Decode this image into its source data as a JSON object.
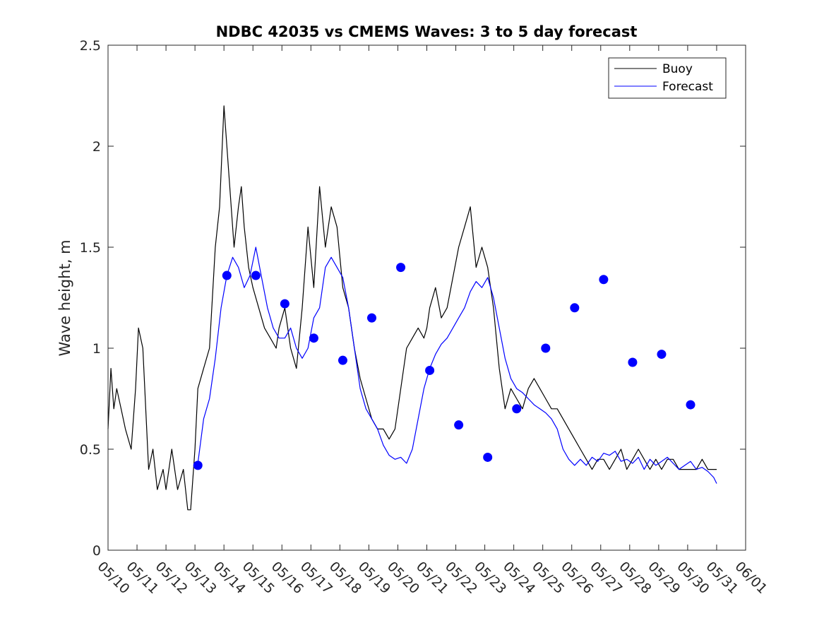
{
  "chart_data": {
    "type": "line",
    "title": "NDBC 42035 vs CMEMS Waves: 3 to 5 day forecast",
    "xlabel": "",
    "ylabel": "Wave height, m",
    "xlim": [
      "05/10",
      "06/01"
    ],
    "ylim": [
      0,
      2.5
    ],
    "yticks": [
      0,
      0.5,
      1,
      1.5,
      2,
      2.5
    ],
    "xticks": [
      "05/10",
      "05/11",
      "05/12",
      "05/13",
      "05/14",
      "05/15",
      "05/16",
      "05/17",
      "05/18",
      "05/19",
      "05/20",
      "05/21",
      "05/22",
      "05/23",
      "05/24",
      "05/25",
      "05/26",
      "05/27",
      "05/28",
      "05/29",
      "05/30",
      "05/31",
      "06/01"
    ],
    "grid": false,
    "legend_position": "top-right",
    "series": [
      {
        "name": "Buoy",
        "color": "#000000",
        "x": [
          0.0,
          0.1,
          0.2,
          0.3,
          0.45,
          0.6,
          0.8,
          0.95,
          1.05,
          1.2,
          1.3,
          1.4,
          1.55,
          1.7,
          1.9,
          2.0,
          2.2,
          2.4,
          2.6,
          2.75,
          2.85,
          3.0,
          3.1,
          3.3,
          3.5,
          3.7,
          3.85,
          4.0,
          4.2,
          4.35,
          4.5,
          4.6,
          4.7,
          4.85,
          5.0,
          5.2,
          5.4,
          5.6,
          5.8,
          5.9,
          6.1,
          6.3,
          6.5,
          6.7,
          6.9,
          7.1,
          7.3,
          7.5,
          7.7,
          7.9,
          8.1,
          8.3,
          8.5,
          8.7,
          8.9,
          9.1,
          9.3,
          9.5,
          9.7,
          9.9,
          10.1,
          10.3,
          10.5,
          10.7,
          10.9,
          11.0,
          11.1,
          11.3,
          11.5,
          11.7,
          11.9,
          12.1,
          12.3,
          12.5,
          12.7,
          12.9,
          13.1,
          13.3,
          13.5,
          13.7,
          13.9,
          14.1,
          14.3,
          14.5,
          14.7,
          14.9,
          15.1,
          15.3,
          15.5,
          15.7,
          15.9,
          16.1,
          16.3,
          16.5,
          16.7,
          16.9,
          17.1,
          17.3,
          17.5,
          17.7,
          17.9,
          18.1,
          18.3,
          18.5,
          18.7,
          18.9,
          19.1,
          19.3,
          19.5,
          19.7,
          19.9,
          20.1,
          20.3,
          20.5,
          20.7,
          20.9,
          21.0
        ],
        "values": [
          0.6,
          0.9,
          0.7,
          0.8,
          0.7,
          0.6,
          0.5,
          0.8,
          1.1,
          1.0,
          0.7,
          0.4,
          0.5,
          0.3,
          0.4,
          0.3,
          0.5,
          0.3,
          0.4,
          0.2,
          0.2,
          0.5,
          0.8,
          0.9,
          1.0,
          1.5,
          1.7,
          2.2,
          1.8,
          1.5,
          1.7,
          1.8,
          1.6,
          1.4,
          1.3,
          1.2,
          1.1,
          1.05,
          1.0,
          1.1,
          1.2,
          1.0,
          0.9,
          1.2,
          1.6,
          1.3,
          1.8,
          1.5,
          1.7,
          1.6,
          1.3,
          1.2,
          1.0,
          0.85,
          0.75,
          0.65,
          0.6,
          0.6,
          0.55,
          0.6,
          0.8,
          1.0,
          1.05,
          1.1,
          1.05,
          1.1,
          1.2,
          1.3,
          1.15,
          1.2,
          1.35,
          1.5,
          1.6,
          1.7,
          1.4,
          1.5,
          1.4,
          1.2,
          0.9,
          0.7,
          0.8,
          0.75,
          0.7,
          0.8,
          0.85,
          0.8,
          0.75,
          0.7,
          0.7,
          0.65,
          0.6,
          0.55,
          0.5,
          0.45,
          0.4,
          0.45,
          0.45,
          0.4,
          0.45,
          0.5,
          0.4,
          0.45,
          0.5,
          0.45,
          0.4,
          0.45,
          0.4,
          0.45,
          0.45,
          0.4,
          0.4,
          0.4,
          0.4,
          0.45,
          0.4,
          0.4,
          0.4
        ]
      },
      {
        "name": "Forecast",
        "color": "#0000ff",
        "x": [
          3.1,
          3.3,
          3.5,
          3.7,
          3.9,
          4.1,
          4.3,
          4.5,
          4.7,
          4.9,
          5.1,
          5.3,
          5.5,
          5.7,
          5.9,
          6.1,
          6.3,
          6.5,
          6.7,
          6.9,
          7.1,
          7.3,
          7.5,
          7.7,
          7.9,
          8.1,
          8.3,
          8.5,
          8.7,
          8.9,
          9.1,
          9.3,
          9.5,
          9.7,
          9.9,
          10.1,
          10.3,
          10.5,
          10.7,
          10.9,
          11.1,
          11.3,
          11.5,
          11.7,
          11.9,
          12.1,
          12.3,
          12.5,
          12.7,
          12.9,
          13.1,
          13.3,
          13.5,
          13.7,
          13.9,
          14.1,
          14.3,
          14.5,
          14.7,
          14.9,
          15.1,
          15.3,
          15.5,
          15.7,
          15.9,
          16.1,
          16.3,
          16.5,
          16.7,
          16.9,
          17.1,
          17.3,
          17.5,
          17.7,
          17.9,
          18.1,
          18.3,
          18.5,
          18.7,
          18.9,
          19.1,
          19.3,
          19.5,
          19.7,
          19.9,
          20.1,
          20.3,
          20.5,
          20.7,
          20.9,
          21.0
        ],
        "values": [
          0.43,
          0.65,
          0.75,
          0.95,
          1.2,
          1.36,
          1.45,
          1.4,
          1.3,
          1.36,
          1.5,
          1.35,
          1.2,
          1.1,
          1.05,
          1.05,
          1.1,
          1.0,
          0.95,
          1.0,
          1.15,
          1.2,
          1.4,
          1.45,
          1.4,
          1.35,
          1.2,
          1.0,
          0.8,
          0.7,
          0.65,
          0.6,
          0.52,
          0.47,
          0.45,
          0.46,
          0.43,
          0.5,
          0.65,
          0.8,
          0.9,
          0.97,
          1.02,
          1.05,
          1.1,
          1.15,
          1.2,
          1.28,
          1.33,
          1.3,
          1.35,
          1.25,
          1.1,
          0.95,
          0.85,
          0.8,
          0.78,
          0.75,
          0.72,
          0.7,
          0.68,
          0.65,
          0.6,
          0.5,
          0.45,
          0.42,
          0.45,
          0.42,
          0.46,
          0.44,
          0.48,
          0.47,
          0.49,
          0.44,
          0.45,
          0.43,
          0.46,
          0.4,
          0.45,
          0.42,
          0.44,
          0.46,
          0.43,
          0.4,
          0.42,
          0.44,
          0.4,
          0.41,
          0.39,
          0.36,
          0.33
        ]
      },
      {
        "name": "",
        "type": "scatter",
        "color": "#0000ff",
        "x": [
          3.1,
          4.1,
          5.1,
          6.1,
          7.1,
          8.1,
          9.1,
          10.1,
          11.1,
          12.1,
          13.1,
          14.1,
          15.1,
          16.1,
          17.1,
          18.1,
          19.1,
          20.1
        ],
        "values": [
          0.42,
          1.36,
          1.36,
          1.22,
          1.05,
          0.94,
          1.15,
          1.4,
          0.89,
          0.62,
          0.46,
          0.7,
          1.0,
          1.2,
          1.34,
          0.93,
          0.97,
          0.72
        ]
      }
    ]
  }
}
